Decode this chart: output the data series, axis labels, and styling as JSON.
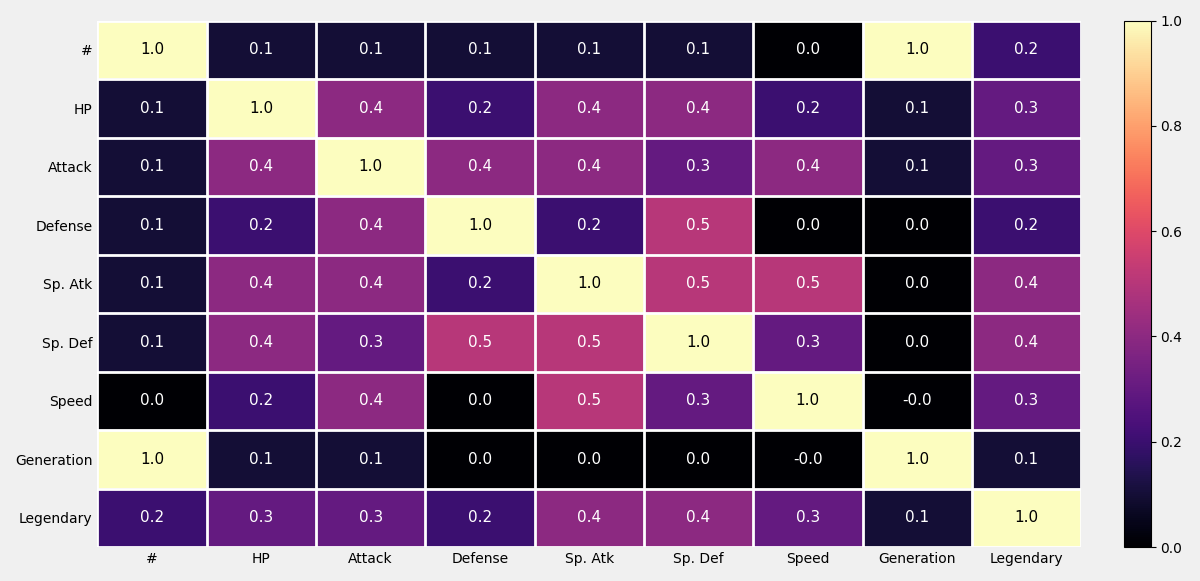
{
  "labels": [
    "#",
    "HP",
    "Attack",
    "Defense",
    "Sp. Atk",
    "Sp. Def",
    "Speed",
    "Generation",
    "Legendary"
  ],
  "matrix": [
    [
      1.0,
      0.1,
      0.1,
      0.1,
      0.1,
      0.1,
      0.0,
      1.0,
      0.2
    ],
    [
      0.1,
      1.0,
      0.4,
      0.2,
      0.4,
      0.4,
      0.2,
      0.1,
      0.3
    ],
    [
      0.1,
      0.4,
      1.0,
      0.4,
      0.4,
      0.3,
      0.4,
      0.1,
      0.3
    ],
    [
      0.1,
      0.2,
      0.4,
      1.0,
      0.2,
      0.5,
      0.0,
      0.0,
      0.2
    ],
    [
      0.1,
      0.4,
      0.4,
      0.2,
      1.0,
      0.5,
      0.5,
      0.0,
      0.4
    ],
    [
      0.1,
      0.4,
      0.3,
      0.5,
      0.5,
      1.0,
      0.3,
      0.0,
      0.4
    ],
    [
      0.0,
      0.2,
      0.4,
      0.0,
      0.5,
      0.3,
      1.0,
      -0.0,
      0.3
    ],
    [
      1.0,
      0.1,
      0.1,
      0.0,
      0.0,
      0.0,
      -0.0,
      1.0,
      0.1
    ],
    [
      0.2,
      0.3,
      0.3,
      0.2,
      0.4,
      0.4,
      0.3,
      0.1,
      1.0
    ]
  ],
  "display_values": [
    [
      "1.0",
      "0.1",
      "0.1",
      "0.1",
      "0.1",
      "0.1",
      "0.0",
      "1.0",
      "0.2"
    ],
    [
      "0.1",
      "1.0",
      "0.4",
      "0.2",
      "0.4",
      "0.4",
      "0.2",
      "0.1",
      "0.3"
    ],
    [
      "0.1",
      "0.4",
      "1.0",
      "0.4",
      "0.4",
      "0.3",
      "0.4",
      "0.1",
      "0.3"
    ],
    [
      "0.1",
      "0.2",
      "0.4",
      "1.0",
      "0.2",
      "0.5",
      "0.0",
      "0.0",
      "0.2"
    ],
    [
      "0.1",
      "0.4",
      "0.4",
      "0.2",
      "1.0",
      "0.5",
      "0.5",
      "0.0",
      "0.4"
    ],
    [
      "0.1",
      "0.4",
      "0.3",
      "0.5",
      "0.5",
      "1.0",
      "0.3",
      "0.0",
      "0.4"
    ],
    [
      "0.0",
      "0.2",
      "0.4",
      "0.0",
      "0.5",
      "0.3",
      "1.0",
      "-0.0",
      "0.3"
    ],
    [
      "1.0",
      "0.1",
      "0.1",
      "0.0",
      "0.0",
      "0.0",
      "-0.0",
      "1.0",
      "0.1"
    ],
    [
      "0.2",
      "0.3",
      "0.3",
      "0.2",
      "0.4",
      "0.4",
      "0.3",
      "0.1",
      "1.0"
    ]
  ],
  "cmap": "magma",
  "vmin": 0.0,
  "vmax": 1.0,
  "background_color": "#f0f0f0",
  "text_color_light": "white",
  "text_color_dark": "black",
  "figsize": [
    12.0,
    5.81
  ],
  "dpi": 100,
  "fontsize_annot": 11,
  "fontsize_tick": 10,
  "linewidth_grid": 2,
  "text_threshold": 0.75
}
